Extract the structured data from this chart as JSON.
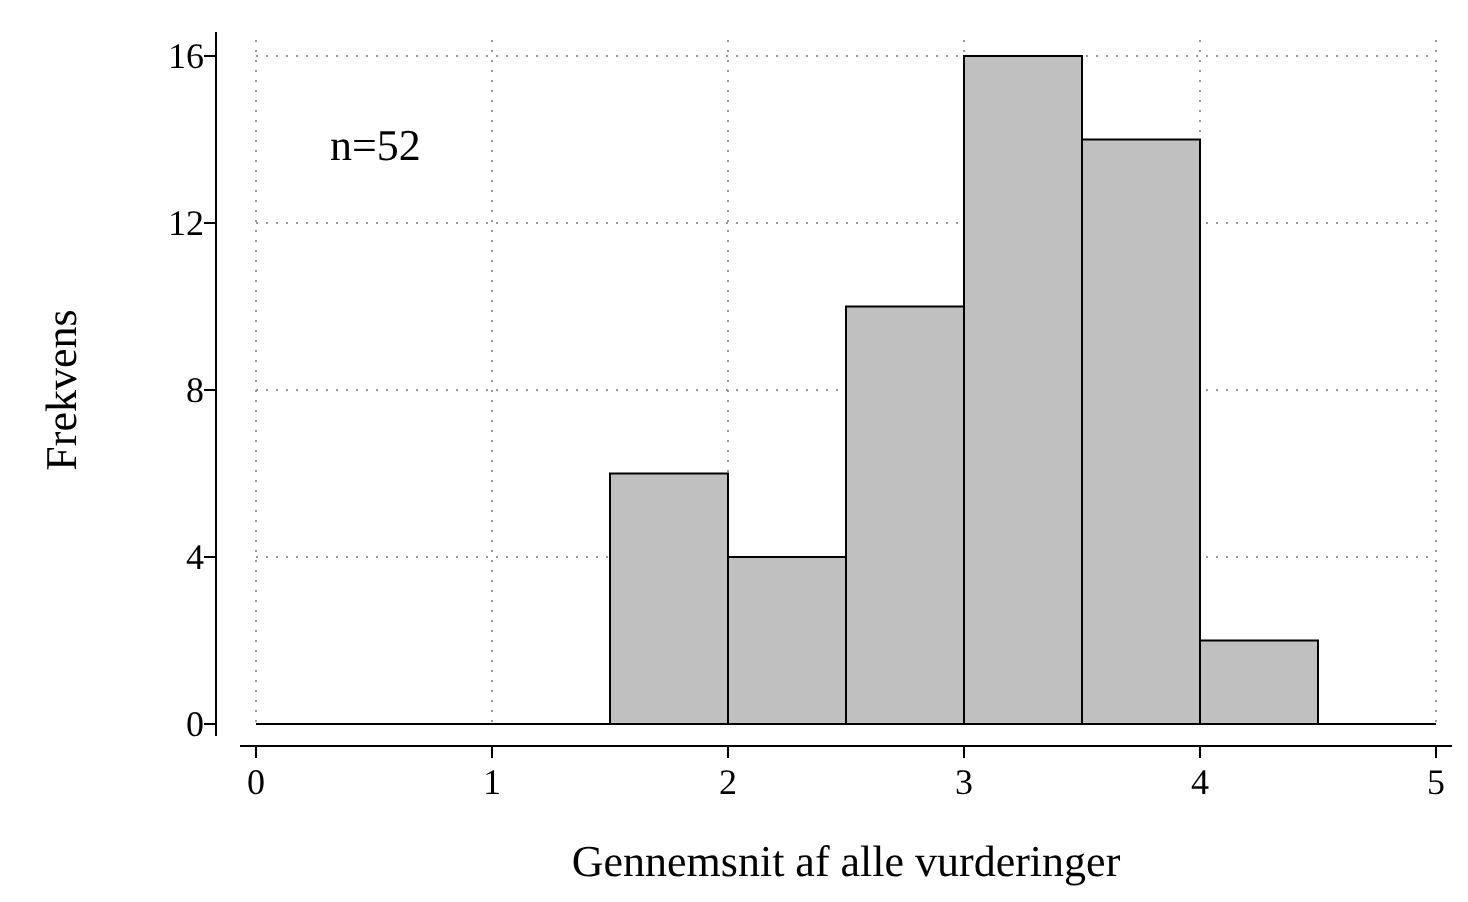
{
  "chart_data": {
    "type": "histogram",
    "xlabel": "Gennemsnit af alle vurderinger",
    "ylabel": "Frekvens",
    "annotations": [
      "n=52"
    ],
    "bins": [
      0,
      0.5,
      1,
      1.5,
      2,
      2.5,
      3,
      3.5,
      4,
      4.5,
      5
    ],
    "values": [
      0,
      0,
      0,
      6,
      4,
      10,
      16,
      14,
      2,
      0
    ],
    "color": "#c0c0c0",
    "xlim": [
      0,
      5
    ],
    "xticks": [
      0,
      1,
      2,
      3,
      4,
      5
    ],
    "ylim": [
      0,
      16
    ],
    "yticks": [
      0,
      4,
      8,
      12,
      16
    ],
    "grid": true
  }
}
